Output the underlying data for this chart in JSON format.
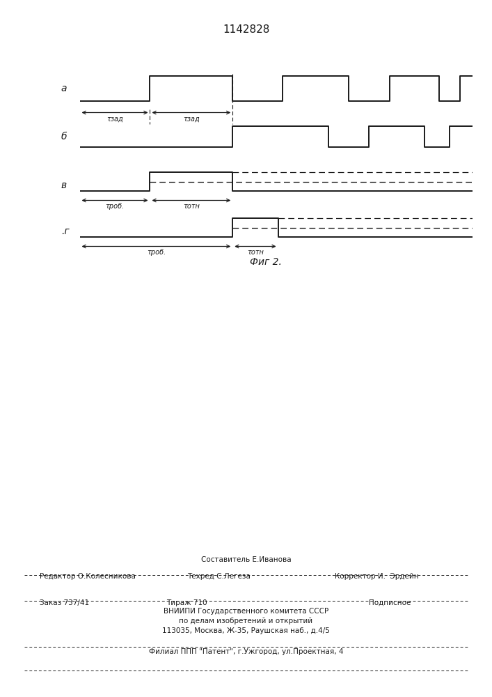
{
  "title": "1142828",
  "fig_label": "Фиг 2.",
  "background_color": "#ffffff",
  "line_color": "#1a1a1a",
  "signal_a_label": "a",
  "signal_b_label": "б",
  "signal_v_label": "в",
  "signal_g_label": ".г",
  "tau_zad_label": "τзад",
  "tau_rob_label": "τроб.",
  "tau_otn_label": "τотн",
  "footer_line0": "Составитель Е.Иванова",
  "footer_line1a": "Редактор О.Колесникова",
  "footer_line1b": "Техред С.Легеза",
  "footer_line1c": "Корректор И.  Эрдейн",
  "footer_line2a": "Заказ 737/41",
  "footer_line2b": "Тираж 710",
  "footer_line2c": "Подписное",
  "footer_line3": "ВНИИПИ Государственного комитета СССР",
  "footer_line4": "по делам изобретений и открытий",
  "footer_line5": "113035, Москва, Ж-35, Раушская наб., д.4/5",
  "footer_line6": "Филиал ППП \"Патент\", г.Ужгород, ул.Проектная, 4"
}
